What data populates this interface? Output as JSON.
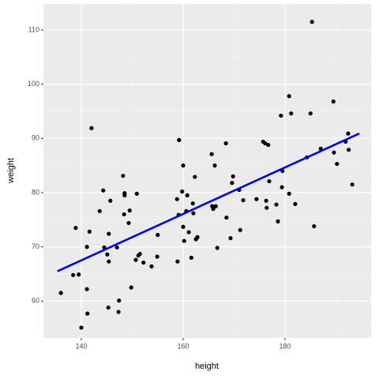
{
  "chart_data": {
    "type": "scatter",
    "xlabel": "height",
    "ylabel": "weight",
    "xlim": [
      132.56,
      196.9
    ],
    "ylim": [
      53.2,
      114.8
    ],
    "xticks": [
      140,
      160,
      180
    ],
    "yticks": [
      60,
      70,
      80,
      90,
      100,
      110
    ],
    "grid": true,
    "color": "#000000",
    "x": [
      136.0,
      138.4,
      138.9,
      139.5,
      140.0,
      141.1,
      141.1,
      141.2,
      141.6,
      142.0,
      143.6,
      144.3,
      144.5,
      145.1,
      145.4,
      145.4,
      145.3,
      145.7,
      147.0,
      147.3,
      147.4,
      148.2,
      148.4,
      148.5,
      148.5,
      149.3,
      149.5,
      149.8,
      150.7,
      150.9,
      151.2,
      151.5,
      152.2,
      153.8,
      154.9,
      155.0,
      158.8,
      158.9,
      159.1,
      159.2,
      159.8,
      160.0,
      160.0,
      160.2,
      160.6,
      160.8,
      161.1,
      161.6,
      161.9,
      162.0,
      162.3,
      162.5,
      162.8,
      165.6,
      165.7,
      165.9,
      166.2,
      166.4,
      166.7,
      168.4,
      168.5,
      169.3,
      169.6,
      169.8,
      171.0,
      171.2,
      171.8,
      174.4,
      175.7,
      176.1,
      176.3,
      176.4,
      176.7,
      176.9,
      178.3,
      178.6,
      179.2,
      179.4,
      179.5,
      180.8,
      180.8,
      181.2,
      182.0,
      184.3,
      185.0,
      185.3,
      185.7,
      187.0,
      189.5,
      189.6,
      190.2,
      191.9,
      192.4,
      192.5,
      193.2
    ],
    "y": [
      61.5,
      64.8,
      73.5,
      64.9,
      55.1,
      70.0,
      62.2,
      57.7,
      72.8,
      91.9,
      76.6,
      80.4,
      69.9,
      68.6,
      72.4,
      67.3,
      58.8,
      78.5,
      69.9,
      58.0,
      60.1,
      83.1,
      76.0,
      79.9,
      79.5,
      74.4,
      76.7,
      62.5,
      67.6,
      79.8,
      68.4,
      68.7,
      67.1,
      66.4,
      68.2,
      72.2,
      78.8,
      67.3,
      75.9,
      89.7,
      80.2,
      85.0,
      73.7,
      71.1,
      76.6,
      79.5,
      72.7,
      68.0,
      78.0,
      76.2,
      82.9,
      71.4,
      71.8,
      87.1,
      77.5,
      77.0,
      85.0,
      77.5,
      69.8,
      89.1,
      75.4,
      71.6,
      81.8,
      83.0,
      80.5,
      73.1,
      78.6,
      78.8,
      89.4,
      89.1,
      78.5,
      77.2,
      88.8,
      82.1,
      77.8,
      74.7,
      94.2,
      81.0,
      84.0,
      97.8,
      79.8,
      94.6,
      77.9,
      86.5,
      94.6,
      111.5,
      73.8,
      88.1,
      96.8,
      87.4,
      85.3,
      89.4,
      90.9,
      87.9,
      81.5
    ],
    "fit": {
      "color": "#0000ff",
      "x": [
        135.3,
        194.6
      ],
      "y": [
        65.5,
        90.9
      ]
    }
  }
}
